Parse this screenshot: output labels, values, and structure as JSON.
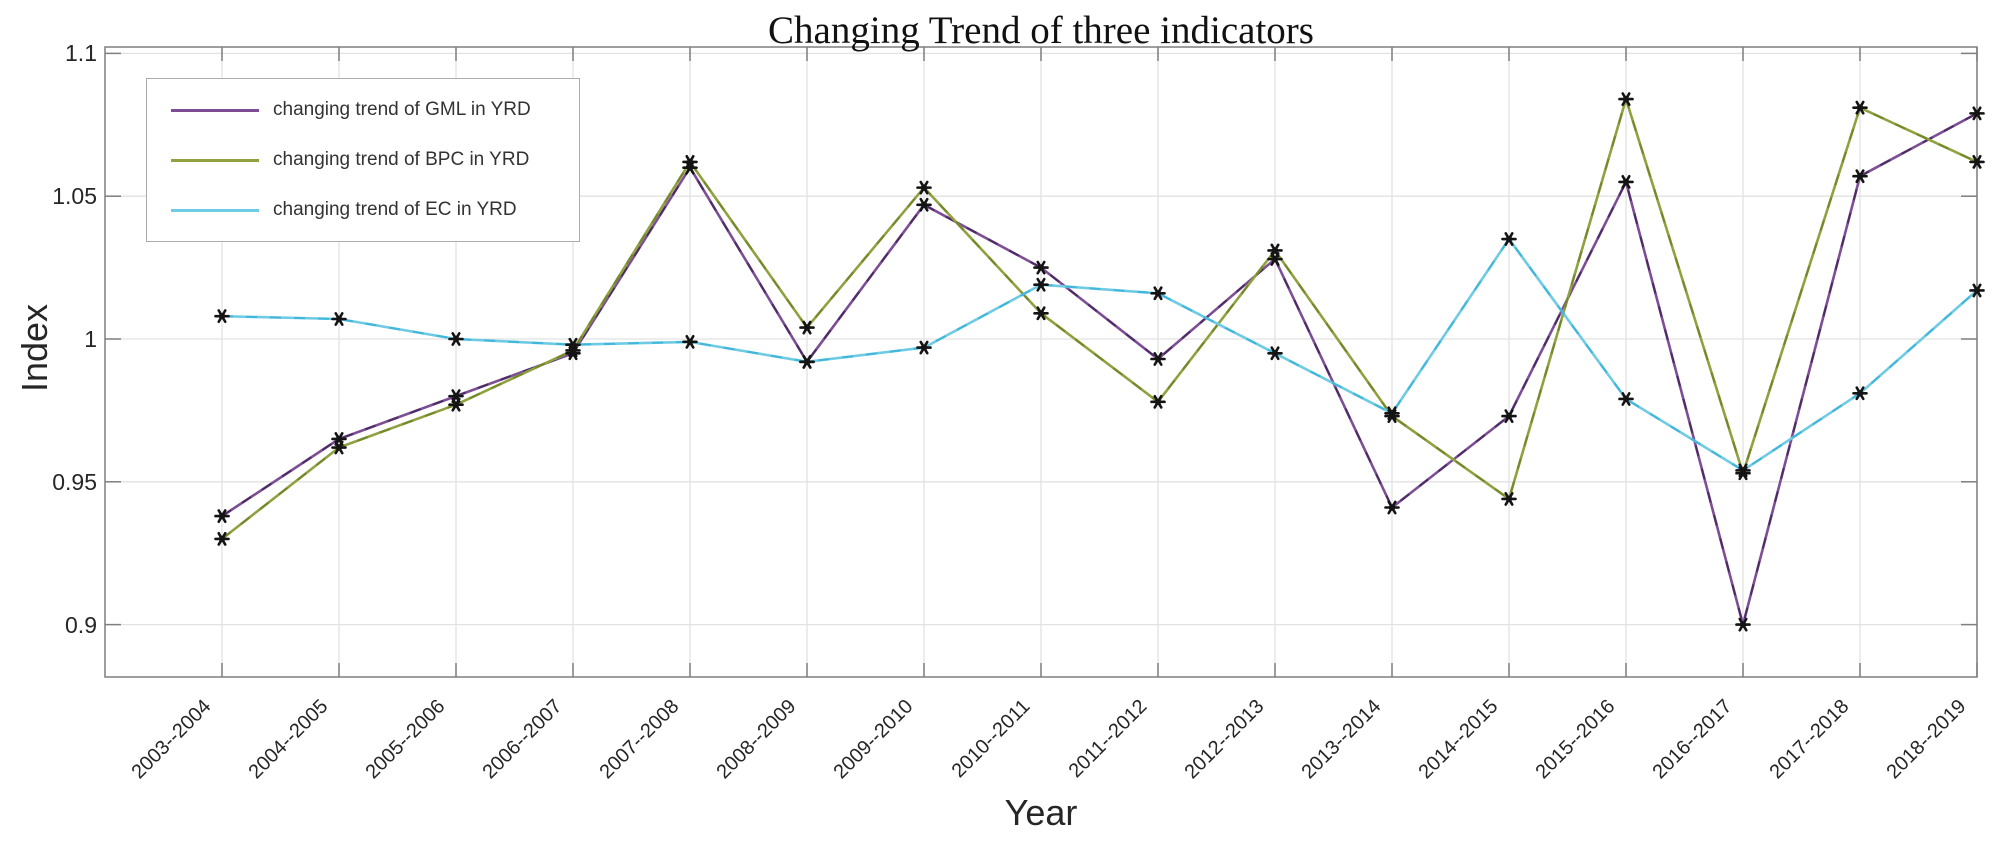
{
  "chart_data": {
    "type": "line",
    "title": "Changing Trend of three indicators",
    "xlabel": "Year",
    "ylabel": "Index",
    "categories": [
      "2003--2004",
      "2004--2005",
      "2005--2006",
      "2006--2007",
      "2007--2008",
      "2008--2009",
      "2009--2010",
      "2010--2011",
      "2011--2012",
      "2012--2013",
      "2013--2014",
      "2014--2015",
      "2015--2016",
      "2016--2017",
      "2017--2018",
      "2018--2019"
    ],
    "series": [
      {
        "name": "changing trend of GML in YRD",
        "color": "#7d4e96",
        "dash_color": "#43275a",
        "values": [
          0.938,
          0.965,
          0.98,
          0.995,
          1.06,
          0.992,
          1.047,
          1.025,
          0.993,
          1.028,
          0.941,
          0.973,
          1.055,
          0.9,
          1.057,
          1.079
        ]
      },
      {
        "name": "changing trend of BPC in YRD",
        "color": "#8fa23f",
        "dash_color": "#6f8428",
        "values": [
          0.93,
          0.962,
          0.977,
          0.996,
          1.062,
          1.004,
          1.053,
          1.009,
          0.978,
          1.031,
          0.973,
          0.944,
          1.084,
          0.953,
          1.081,
          1.062
        ]
      },
      {
        "name": "changing trend of EC in YRD",
        "color": "#6fcbe4",
        "dash_color": "#38b3d8",
        "values": [
          1.008,
          1.007,
          1.0,
          0.998,
          0.999,
          0.992,
          0.997,
          1.019,
          1.016,
          0.995,
          0.974,
          1.035,
          0.979,
          0.954,
          0.981,
          1.017
        ]
      }
    ],
    "yticks": [
      {
        "v": 0.9,
        "label": "0.9"
      },
      {
        "v": 0.95,
        "label": "0.95"
      },
      {
        "v": 1.0,
        "label": "1"
      },
      {
        "v": 1.05,
        "label": "1.05"
      },
      {
        "v": 1.1,
        "label": "1.1"
      }
    ],
    "ylim": [
      0.8815,
      1.1022
    ],
    "grid": true,
    "legend_position": "top-left",
    "marker": "black-asterisk",
    "marker_color": "#141414",
    "axis_colors": {
      "spine": "#7f7f7f",
      "grid": "#e2e2e2",
      "tick_label": "#262626"
    }
  }
}
